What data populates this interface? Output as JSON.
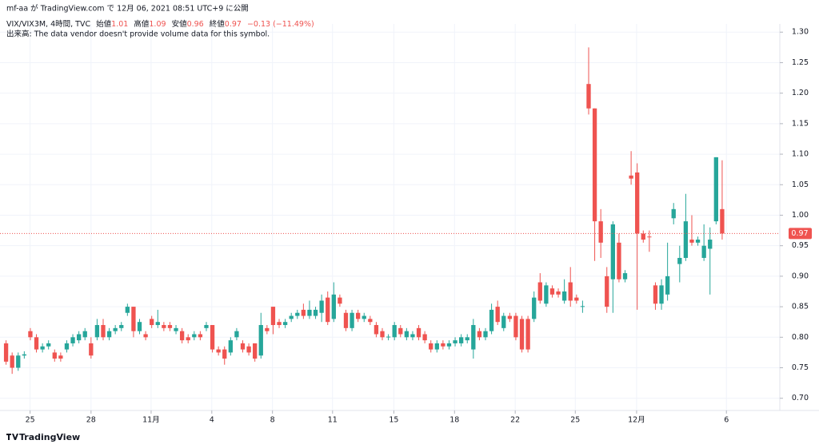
{
  "header": {
    "published": "mf-aa が TradingView.com で 12月 06, 2021 08:51 UTC+9 に公開",
    "symbol": "VIX/VIX3M, 4時間, TVC",
    "open_label": "始値",
    "open": 1.01,
    "high_label": "高値",
    "high": 1.09,
    "low_label": "安値",
    "low": 0.96,
    "close_label": "終値",
    "close": 0.97,
    "change": "−0.13 (−11.49%)",
    "volume": "出来高: The data vendor doesn't provide volume data for this symbol."
  },
  "footer": {
    "brand": "TradingView"
  },
  "chart_data": {
    "type": "candlestick",
    "up_color": "#26a69a",
    "down_color": "#ef5350",
    "grid": true,
    "last_price": 0.97,
    "xlim": [
      -1,
      127.5
    ],
    "xticks": [
      {
        "value": 3.96,
        "label": "25"
      },
      {
        "value": 14,
        "label": "28"
      },
      {
        "value": 23.9,
        "label": "11月"
      },
      {
        "value": 33.9,
        "label": "4"
      },
      {
        "value": 43.9,
        "label": "8"
      },
      {
        "value": 53.8,
        "label": "11"
      },
      {
        "value": 63.9,
        "label": "15"
      },
      {
        "value": 73.9,
        "label": "18"
      },
      {
        "value": 83.9,
        "label": "22"
      },
      {
        "value": 93.8,
        "label": "25"
      },
      {
        "value": 103.9,
        "label": "12月"
      },
      {
        "value": 118.7,
        "label": "6"
      }
    ],
    "ylim": [
      0.68,
      1.3134
    ],
    "yticks": [
      {
        "value": 0.7,
        "label": "0.70"
      },
      0.75,
      {
        "value": 0.8,
        "label": "0.80"
      },
      0.85,
      {
        "value": 0.9,
        "label": "0.90"
      },
      0.95,
      {
        "value": 1,
        "label": "1.00"
      },
      1.05,
      {
        "value": 1.1,
        "label": "1.10"
      },
      1.15,
      {
        "value": 1.2,
        "label": "1.20"
      },
      1.25,
      {
        "value": 1.3,
        "label": "1.30"
      }
    ],
    "open": [
      0.79,
      0.77,
      0.75,
      0.77,
      0.81,
      0.8,
      0.78,
      0.785,
      0.775,
      0.77,
      0.78,
      0.79,
      0.795,
      0.8,
      0.79,
      0.8,
      0.82,
      0.8,
      0.81,
      0.815,
      0.84,
      0.85,
      0.81,
      0.805,
      0.83,
      0.82,
      0.82,
      0.82,
      0.81,
      0.81,
      0.8,
      0.8,
      0.805,
      0.815,
      0.82,
      0.78,
      0.78,
      0.775,
      0.8,
      0.79,
      0.785,
      0.79,
      0.77,
      0.815,
      0.85,
      0.825,
      0.82,
      0.83,
      0.835,
      0.845,
      0.835,
      0.835,
      0.84,
      0.865,
      0.83,
      0.865,
      0.84,
      0.815,
      0.84,
      0.83,
      0.83,
      0.82,
      0.81,
      0.8,
      0.8,
      0.815,
      0.8,
      0.8,
      0.815,
      0.805,
      0.79,
      0.78,
      0.79,
      0.785,
      0.79,
      0.79,
      0.795,
      0.78,
      0.81,
      0.8,
      0.81,
      0.85,
      0.815,
      0.835,
      0.835,
      0.83,
      0.83,
      0.83,
      0.89,
      0.855,
      0.88,
      0.875,
      0.86,
      0.89,
      0.865,
      0.85,
      1.215,
      1.175,
      0.99,
      0.9,
      0.895,
      0.955,
      0.895,
      1.065,
      1.07,
      0.97,
      0.965,
      0.885,
      0.855,
      0.87,
      0.995,
      0.92,
      0.93,
      0.96,
      0.955,
      0.93,
      0.945,
      0.99,
      1.01
    ],
    "high": [
      0.795,
      0.775,
      0.775,
      0.777,
      0.815,
      0.805,
      0.79,
      0.795,
      0.78,
      0.775,
      0.795,
      0.805,
      0.81,
      0.815,
      0.8,
      0.83,
      0.83,
      0.815,
      0.82,
      0.825,
      0.855,
      0.85,
      0.83,
      0.81,
      0.835,
      0.845,
      0.825,
      0.825,
      0.82,
      0.815,
      0.805,
      0.81,
      0.81,
      0.825,
      0.82,
      0.785,
      0.785,
      0.8,
      0.815,
      0.795,
      0.79,
      0.79,
      0.84,
      0.82,
      0.85,
      0.83,
      0.83,
      0.84,
      0.845,
      0.855,
      0.86,
      0.85,
      0.87,
      0.875,
      0.89,
      0.87,
      0.845,
      0.845,
      0.845,
      0.84,
      0.835,
      0.825,
      0.815,
      0.805,
      0.825,
      0.82,
      0.815,
      0.81,
      0.82,
      0.81,
      0.795,
      0.795,
      0.795,
      0.795,
      0.8,
      0.805,
      0.805,
      0.83,
      0.815,
      0.815,
      0.855,
      0.86,
      0.84,
      0.84,
      0.84,
      0.835,
      0.835,
      0.875,
      0.905,
      0.89,
      0.885,
      0.88,
      0.895,
      0.915,
      0.87,
      0.86,
      1.275,
      1.175,
      1.01,
      0.915,
      0.99,
      0.97,
      0.91,
      1.105,
      1.085,
      0.975,
      0.975,
      0.89,
      0.895,
      0.955,
      1.02,
      0.95,
      1.035,
      1.0,
      0.965,
      0.985,
      0.98,
      1.095,
      1.09
    ],
    "low": [
      0.755,
      0.74,
      0.745,
      0.765,
      0.795,
      0.775,
      0.775,
      0.78,
      0.76,
      0.76,
      0.775,
      0.785,
      0.79,
      0.795,
      0.765,
      0.795,
      0.795,
      0.795,
      0.805,
      0.81,
      0.835,
      0.8,
      0.805,
      0.795,
      0.815,
      0.815,
      0.81,
      0.81,
      0.805,
      0.79,
      0.79,
      0.795,
      0.795,
      0.81,
      0.775,
      0.77,
      0.755,
      0.77,
      0.795,
      0.775,
      0.77,
      0.76,
      0.765,
      0.805,
      0.805,
      0.815,
      0.815,
      0.825,
      0.83,
      0.83,
      0.83,
      0.83,
      0.825,
      0.82,
      0.825,
      0.85,
      0.81,
      0.81,
      0.825,
      0.825,
      0.82,
      0.8,
      0.795,
      0.795,
      0.795,
      0.8,
      0.795,
      0.795,
      0.795,
      0.79,
      0.775,
      0.775,
      0.78,
      0.78,
      0.785,
      0.785,
      0.79,
      0.765,
      0.795,
      0.795,
      0.805,
      0.82,
      0.81,
      0.825,
      0.795,
      0.775,
      0.775,
      0.825,
      0.855,
      0.85,
      0.865,
      0.865,
      0.855,
      0.85,
      0.855,
      0.84,
      1.165,
      0.925,
      0.93,
      0.84,
      0.84,
      0.89,
      0.89,
      1.05,
      0.845,
      0.955,
      0.94,
      0.845,
      0.845,
      0.86,
      0.985,
      0.89,
      0.925,
      0.95,
      0.95,
      0.925,
      0.87,
      0.985,
      0.96
    ],
    "close": [
      0.76,
      0.75,
      0.77,
      0.772,
      0.8,
      0.78,
      0.785,
      0.79,
      0.765,
      0.765,
      0.79,
      0.8,
      0.805,
      0.81,
      0.77,
      0.82,
      0.8,
      0.81,
      0.815,
      0.82,
      0.85,
      0.81,
      0.825,
      0.8,
      0.82,
      0.825,
      0.815,
      0.815,
      0.815,
      0.795,
      0.795,
      0.805,
      0.8,
      0.82,
      0.78,
      0.775,
      0.765,
      0.795,
      0.81,
      0.78,
      0.775,
      0.765,
      0.82,
      0.81,
      0.82,
      0.82,
      0.825,
      0.835,
      0.84,
      0.835,
      0.845,
      0.845,
      0.86,
      0.825,
      0.87,
      0.855,
      0.815,
      0.84,
      0.83,
      0.835,
      0.825,
      0.805,
      0.8,
      0.801,
      0.82,
      0.805,
      0.81,
      0.805,
      0.8,
      0.795,
      0.78,
      0.79,
      0.785,
      0.79,
      0.795,
      0.8,
      0.8,
      0.82,
      0.8,
      0.81,
      0.845,
      0.825,
      0.835,
      0.83,
      0.8,
      0.78,
      0.78,
      0.865,
      0.86,
      0.885,
      0.87,
      0.87,
      0.875,
      0.86,
      0.86,
      0.851,
      1.175,
      0.99,
      0.955,
      0.85,
      0.985,
      0.895,
      0.905,
      1.06,
      0.97,
      0.96,
      0.964,
      0.855,
      0.885,
      0.9,
      1.01,
      0.93,
      0.99,
      0.955,
      0.96,
      0.95,
      0.96,
      1.095,
      0.97
    ]
  }
}
